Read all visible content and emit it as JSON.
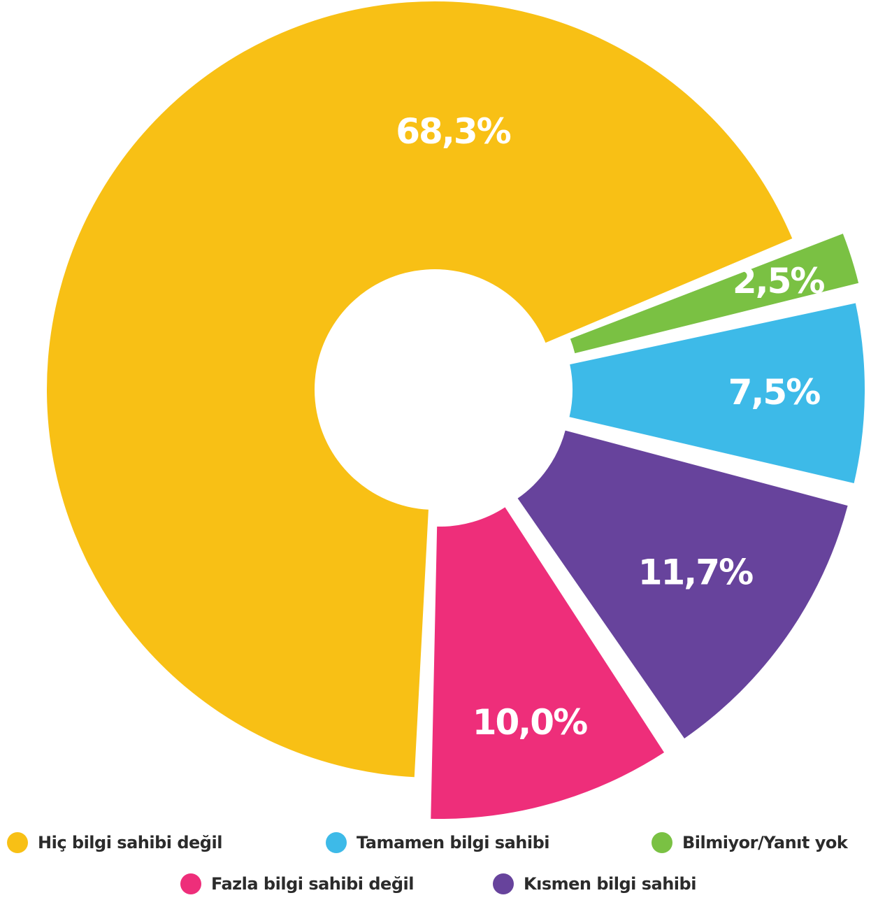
{
  "chart_data": {
    "type": "pie",
    "variant": "donut-exploded",
    "title": "",
    "slices": [
      {
        "label": "Hiç bilgi sahibi değil",
        "value": 68.3,
        "value_label": "68,3%",
        "color": "#F8C015"
      },
      {
        "label": "Bilmiyor/Yanıt yok",
        "value": 2.5,
        "value_label": "2,5%",
        "color": "#7AC143"
      },
      {
        "label": "Tamamen bilgi sahibi",
        "value": 7.5,
        "value_label": "7,5%",
        "color": "#3DBAE8"
      },
      {
        "label": "Kısmen bilgi sahibi",
        "value": 11.7,
        "value_label": "11,7%",
        "color": "#67439C"
      },
      {
        "label": "Fazla bilgi sahibi değil",
        "value": 10.0,
        "value_label": "10,0%",
        "color": "#EE2E7A"
      }
    ],
    "legend_placement": "bottom",
    "legend": [
      [
        {
          "label": "Hiç bilgi sahibi değil",
          "color": "#F8C015"
        },
        {
          "label": "Tamamen bilgi sahibi",
          "color": "#3DBAE8"
        },
        {
          "label": "Bilmiyor/Yanıt yok",
          "color": "#7AC143"
        }
      ],
      [
        {
          "label": "Fazla bilgi sahibi değil",
          "color": "#EE2E7A"
        },
        {
          "label": "Kısmen bilgi sahibi",
          "color": "#67439C"
        }
      ]
    ]
  }
}
